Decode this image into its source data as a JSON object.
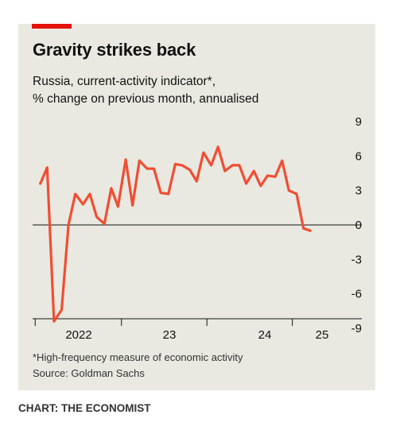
{
  "header": {
    "title": "Gravity strikes back",
    "subtitle_line1": "Russia, current-activity indicator*,",
    "subtitle_line2": "% change on previous month, annualised"
  },
  "footer": {
    "footnote": "*High-frequency measure of economic activity",
    "source": "Source: Goldman Sachs",
    "credit": "CHART: THE ECONOMIST"
  },
  "colors": {
    "accent": "#e3120b",
    "line": "#f04e33",
    "panel": "#e9e9e1",
    "text": "#121212"
  },
  "chart_data": {
    "type": "line",
    "title": "Gravity strikes back",
    "subtitle": "Russia, current-activity indicator*, % change on previous month, annualised",
    "xlabel": "",
    "ylabel": "",
    "ylim": [
      -9,
      9
    ],
    "yticks": [
      9,
      6,
      3,
      0,
      -3,
      -6,
      -9
    ],
    "grid": false,
    "x_tick_labels": [
      {
        "label": "2022",
        "t": 2021.92
      },
      {
        "label": "23",
        "t": 2023.0
      },
      {
        "label": "24",
        "t": 2024.0
      },
      {
        "label": "25",
        "t": 2025.0
      }
    ],
    "series": [
      {
        "x": [
          2021.92,
          2022.0,
          2022.08,
          2022.17,
          2022.25,
          2022.33,
          2022.42,
          2022.5,
          2022.58,
          2022.67,
          2022.75,
          2022.83,
          2022.92,
          2023.0,
          2023.08,
          2023.17,
          2023.25,
          2023.33,
          2023.42,
          2023.5,
          2023.58,
          2023.67,
          2023.75,
          2023.83,
          2023.92,
          2024.0,
          2024.08,
          2024.17,
          2024.25,
          2024.33,
          2024.42,
          2024.5,
          2024.58,
          2024.67,
          2024.75,
          2024.83,
          2024.92,
          2025.0,
          2025.08
        ],
        "values": [
          3.6,
          5.0,
          -8.4,
          -7.4,
          0.0,
          2.7,
          1.8,
          2.7,
          0.7,
          0.1,
          3.2,
          1.6,
          5.7,
          1.7,
          5.6,
          4.9,
          4.9,
          2.8,
          2.7,
          5.3,
          5.2,
          4.8,
          3.8,
          6.3,
          5.2,
          6.8,
          4.7,
          5.2,
          5.2,
          3.6,
          4.7,
          3.4,
          4.3,
          4.2,
          5.6,
          3.0,
          2.7,
          -0.3,
          -0.5
        ]
      }
    ]
  }
}
